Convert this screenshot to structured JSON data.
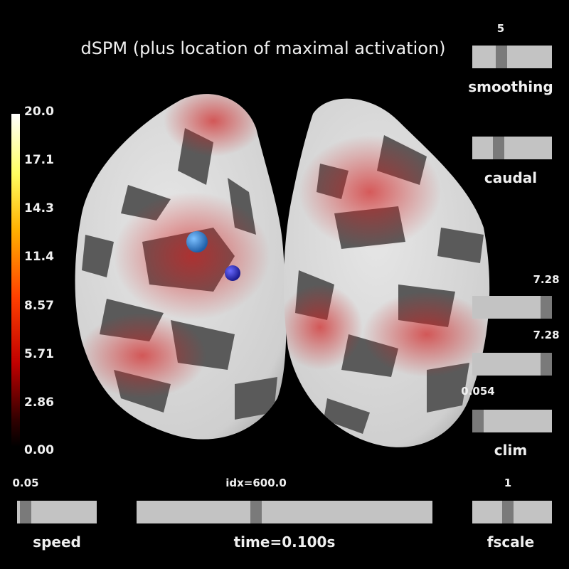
{
  "title": "dSPM (plus location of maximal activation)",
  "colorbar": {
    "ticks": [
      "20.0",
      "17.1",
      "14.3",
      "11.4",
      "8.57",
      "5.71",
      "2.86",
      "0.00"
    ]
  },
  "sliders": {
    "smoothing": {
      "label": "smoothing",
      "value": "5"
    },
    "caudal": {
      "label": "caudal"
    },
    "upper": {
      "value": "7.28"
    },
    "middle": {
      "value": "7.28"
    },
    "clim": {
      "label": "clim",
      "value": "0.054"
    },
    "speed": {
      "label": "speed",
      "value": "0.05"
    },
    "time": {
      "label": "time=0.100s",
      "value": "idx=600.0"
    },
    "fscale": {
      "label": "fscale",
      "value": "1"
    }
  }
}
